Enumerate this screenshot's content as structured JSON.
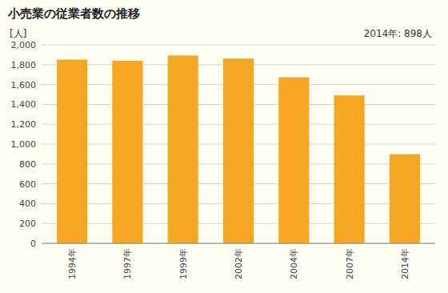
{
  "chart_data": {
    "type": "bar",
    "title": "小売業の従業者数の推移",
    "ylabel": "[人]",
    "annotation": "2014年: 898人",
    "categories": [
      "1994年",
      "1997年",
      "1999年",
      "2002年",
      "2004年",
      "2007年",
      "2014年"
    ],
    "values": [
      1851,
      1840,
      1893,
      1862,
      1672,
      1490,
      898
    ],
    "color": "#F5A623",
    "ylim": [
      0,
      2000
    ],
    "yticks": [
      0,
      200,
      400,
      600,
      800,
      {
        "value": 1000,
        "label": "1,000"
      },
      {
        "value": 1200,
        "label": "1,200"
      },
      {
        "value": 1400,
        "label": "1,400"
      },
      {
        "value": 1600,
        "label": "1,600"
      },
      {
        "value": 1800,
        "label": "1,800"
      },
      {
        "value": 2000,
        "label": "2,000"
      }
    ],
    "grid": true
  }
}
